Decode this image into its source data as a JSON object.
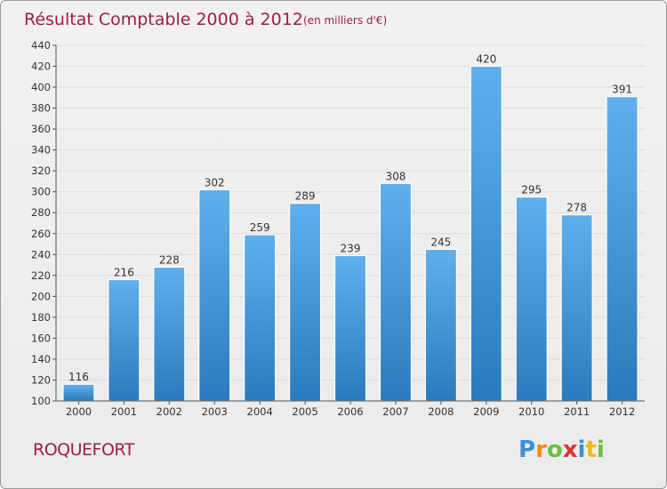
{
  "title": "Résultat Comptable 2000 à 2012",
  "subtitle": "(en milliers d'€)",
  "commune": "ROQUEFORT",
  "logo": {
    "text": "Proxiti",
    "letters": [
      {
        "ch": "P",
        "color": "#3a8fd8"
      },
      {
        "ch": "r",
        "color": "#f08a1c"
      },
      {
        "ch": "o",
        "color": "#6cbf3a"
      },
      {
        "ch": "x",
        "color": "#e0312f"
      },
      {
        "ch": "i",
        "color": "#3a8fd8"
      },
      {
        "ch": "t",
        "color": "#f0b81c"
      },
      {
        "ch": "i",
        "color": "#6cbf3a"
      }
    ]
  },
  "colors": {
    "title": "#9b1e4a",
    "bar_top": "#5fb0ec",
    "bar_bottom": "#2a7bbd",
    "background": "#eeeeee"
  },
  "chart_data": {
    "type": "bar",
    "title": "Résultat Comptable 2000 à 2012",
    "subtitle": "(en milliers d'€)",
    "categories": [
      "2000",
      "2001",
      "2002",
      "2003",
      "2004",
      "2005",
      "2006",
      "2007",
      "2008",
      "2009",
      "2010",
      "2011",
      "2012"
    ],
    "values": [
      116,
      216,
      228,
      302,
      259,
      289,
      239,
      308,
      245,
      420,
      295,
      278,
      391
    ],
    "ylim": [
      100,
      440
    ],
    "yticks": [
      100,
      120,
      140,
      160,
      180,
      200,
      220,
      240,
      260,
      280,
      300,
      320,
      340,
      360,
      380,
      400,
      420,
      440
    ],
    "grid": true,
    "legend": "none"
  }
}
